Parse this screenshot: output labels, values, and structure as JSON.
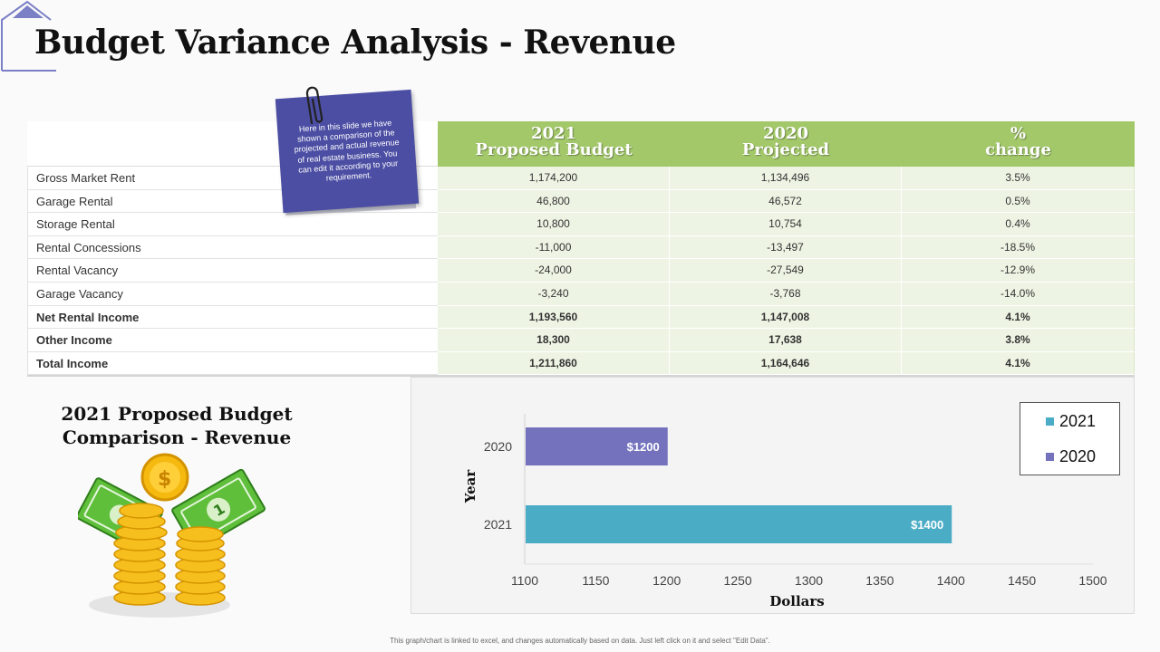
{
  "slide": {
    "title": "Budget Variance Analysis - Revenue",
    "footer": "This graph/chart is linked to excel, and changes automatically based on data. Just left click on it and select \"Edit Data\"."
  },
  "note": {
    "text": "Here in this slide we have shown a comparison of the projected  and actual revenue of real estate business. You can edit it according to your requirement."
  },
  "table": {
    "headers": [
      {
        "line1": "2021",
        "line2": "Proposed Budget"
      },
      {
        "line1": "2020",
        "line2": "Projected"
      },
      {
        "line1": "%",
        "line2": "change"
      }
    ],
    "rows": [
      {
        "label": "Gross Market Rent",
        "budget": "1,174,200",
        "projected": "1,134,496",
        "change": "3.5%"
      },
      {
        "label": "Garage  Rental",
        "budget": "46,800",
        "projected": "46,572",
        "change": "0.5%"
      },
      {
        "label": "Storage Rental",
        "budget": "10,800",
        "projected": "10,754",
        "change": "0.4%"
      },
      {
        "label": "Rental Concessions",
        "budget": "-11,000",
        "projected": "-13,497",
        "change": "-18.5%"
      },
      {
        "label": "Rental Vacancy",
        "budget": "-24,000",
        "projected": "-27,549",
        "change": "-12.9%"
      },
      {
        "label": "Garage  Vacancy",
        "budget": "-3,240",
        "projected": "-3,768",
        "change": "-14.0%"
      },
      {
        "label": "Net Rental Income",
        "budget": "1,193,560",
        "projected": "1,147,008",
        "change": "4.1%"
      },
      {
        "label": "Other Income",
        "budget": "18,300",
        "projected": "17,638",
        "change": "3.8%"
      },
      {
        "label": "Total Income",
        "budget": "1,211,860",
        "projected": "1,164,646",
        "change": "4.1%"
      }
    ]
  },
  "comparison": {
    "title_line1": "2021 Proposed Budget",
    "title_line2": "Comparison - Revenue"
  },
  "icons": {
    "corner": "house-outline-icon",
    "clip": "paperclip-icon",
    "illustration": "money-coins-icon"
  },
  "chart_data": {
    "type": "bar",
    "orientation": "horizontal",
    "categories": [
      "2020",
      "2021"
    ],
    "values": [
      1200,
      1400
    ],
    "data_labels": [
      "$1200",
      "$1400"
    ],
    "colors": [
      "#7472bd",
      "#4bacc6"
    ],
    "xlabel": "Dollars",
    "ylabel": "Year",
    "xlim": [
      1100,
      1500
    ],
    "x_ticks": [
      "1100",
      "1150",
      "1200",
      "1250",
      "1300",
      "1350",
      "1400",
      "1450",
      "1500"
    ],
    "legend": [
      {
        "name": "2021",
        "color": "#4bacc6"
      },
      {
        "name": "2020",
        "color": "#7472bd"
      }
    ],
    "legend_position": "top-right"
  }
}
